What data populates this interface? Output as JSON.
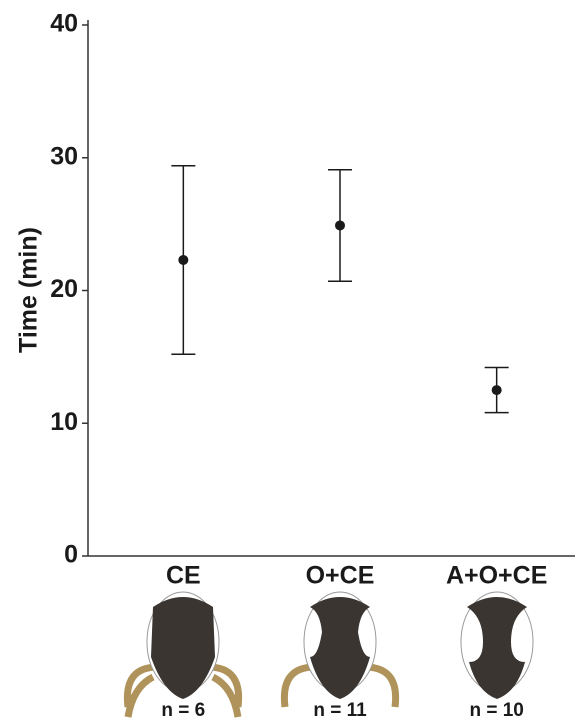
{
  "chart_data": {
    "type": "errorbar",
    "y_label": "Time (min)",
    "categories": [
      "CE",
      "O+CE",
      "A+O+CE"
    ],
    "values": [
      22.3,
      24.9,
      12.5
    ],
    "errors": [
      7.1,
      4.2,
      1.7
    ],
    "sample_labels": [
      "n = 6",
      "n = 11",
      "n = 10"
    ],
    "color": "#1a1a1a",
    "ylim": [
      0,
      40
    ],
    "yticks": [
      0,
      10,
      20,
      30,
      40
    ]
  }
}
